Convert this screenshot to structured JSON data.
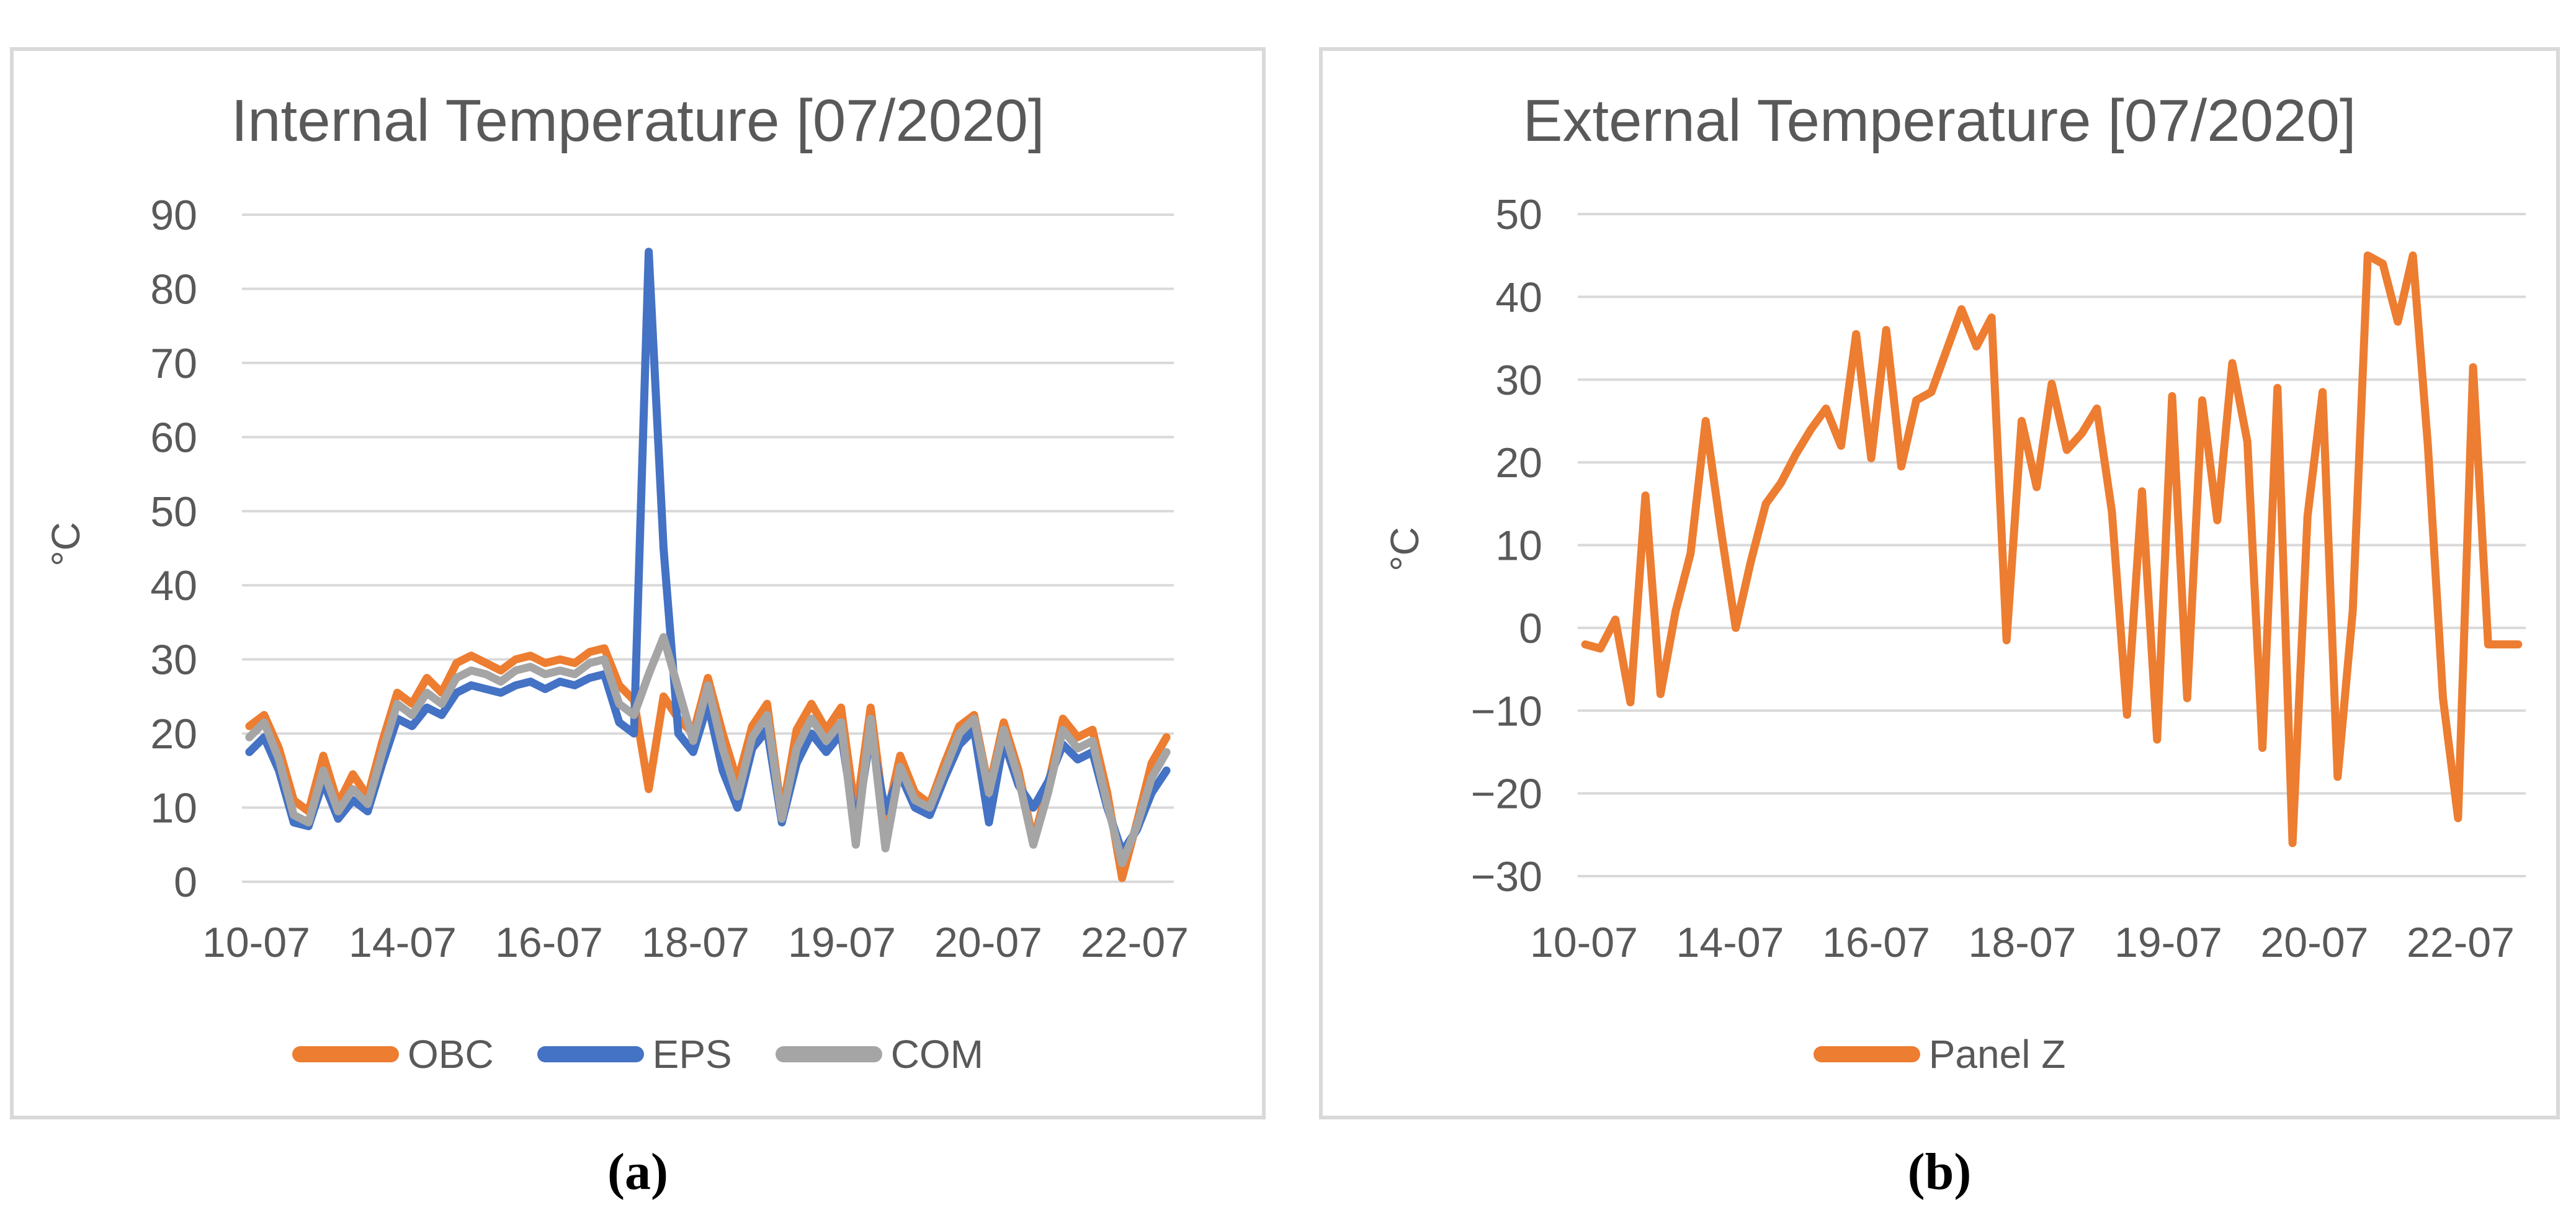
{
  "figure": {
    "captions": [
      "(a)",
      "(b)"
    ]
  },
  "colors": {
    "obc_orange": "#ED7D31",
    "eps_blue": "#4472C4",
    "com_gray": "#A5A5A5",
    "gridline": "#D9D9D9",
    "panel_border": "#D9D9D9",
    "chart_text": "#595959"
  },
  "chart_data": [
    {
      "type": "line",
      "title": "Internal Temperature [07/2020]",
      "xlabel": "",
      "ylabel": "°C",
      "ylim": [
        0,
        90
      ],
      "ytick_values": [
        0,
        10,
        20,
        30,
        40,
        50,
        60,
        70,
        80,
        90
      ],
      "ytick_labels": [
        "0",
        "10",
        "20",
        "30",
        "40",
        "50",
        "60",
        "70",
        "80",
        "90"
      ],
      "xtick_labels": [
        "10-07",
        "14-07",
        "16-07",
        "18-07",
        "19-07",
        "20-07",
        "22-07"
      ],
      "grid": true,
      "legend_position": "bottom",
      "series": [
        {
          "name": "OBC",
          "color": "#ED7D31",
          "values": [
            21,
            22.5,
            18,
            11,
            9.5,
            17,
            10.5,
            14.5,
            11.5,
            19,
            25.5,
            24,
            27.5,
            25.5,
            29.5,
            30.5,
            29.5,
            28.5,
            30,
            30.5,
            29.5,
            30,
            29.5,
            31,
            31.5,
            26.5,
            24.5,
            12.5,
            25,
            22,
            20,
            27.5,
            20,
            13.5,
            21,
            24,
            9,
            20.5,
            24,
            20.5,
            23.5,
            9,
            23.5,
            8,
            17,
            12,
            10.5,
            16,
            21,
            22.5,
            12.5,
            21.5,
            15,
            5.5,
            13,
            22,
            19.5,
            20.5,
            12,
            0.5,
            8,
            16,
            19.5
          ]
        },
        {
          "name": "EPS",
          "color": "#4472C4",
          "values": [
            17.5,
            19.5,
            15,
            8,
            7.5,
            13.5,
            8.5,
            11,
            9.5,
            16,
            22,
            21,
            23.5,
            22.5,
            25.5,
            26.5,
            26,
            25.5,
            26.5,
            27,
            26,
            27,
            26.5,
            27.5,
            28,
            21.5,
            20,
            85,
            45,
            20,
            17.5,
            24,
            15,
            10,
            18,
            20.5,
            8,
            16,
            20,
            17.5,
            20,
            7,
            20,
            9.5,
            14.5,
            10,
            9,
            14,
            18.5,
            20.5,
            8,
            19,
            13,
            10,
            13.5,
            18.5,
            16.5,
            17.5,
            10,
            4,
            7,
            12,
            15
          ]
        },
        {
          "name": "COM",
          "color": "#A5A5A5",
          "values": [
            19.5,
            21.5,
            16.5,
            9,
            8,
            15,
            9.5,
            12.5,
            10.5,
            17.5,
            24,
            22.5,
            25.5,
            24,
            27.5,
            28.5,
            28,
            27,
            28.5,
            29,
            28,
            28.5,
            28,
            29.5,
            30,
            24,
            22.5,
            28,
            33,
            26,
            19,
            26.5,
            18,
            11.5,
            19.5,
            22.5,
            8.5,
            18,
            22,
            19,
            21.5,
            5,
            22,
            4.5,
            15.5,
            11,
            10,
            15,
            20,
            22,
            12,
            20.5,
            14,
            5,
            12,
            20.5,
            18,
            19,
            10.5,
            2.5,
            7.5,
            14,
            17.5
          ]
        }
      ]
    },
    {
      "type": "line",
      "title": "External Temperature [07/2020]",
      "xlabel": "",
      "ylabel": "°C",
      "ylim": [
        -30,
        50
      ],
      "ytick_values": [
        -30,
        -20,
        -10,
        0,
        10,
        20,
        30,
        40,
        50
      ],
      "ytick_labels": [
        "−30",
        "−20",
        "−10",
        "0",
        "10",
        "20",
        "30",
        "40",
        "50"
      ],
      "xtick_labels": [
        "10-07",
        "14-07",
        "16-07",
        "18-07",
        "19-07",
        "20-07",
        "22-07"
      ],
      "grid": true,
      "legend_position": "bottom",
      "series": [
        {
          "name": "Panel Z",
          "color": "#ED7D31",
          "values": [
            -2,
            -2.5,
            1,
            -9,
            16,
            -8,
            2,
            9,
            25,
            12,
            0,
            8,
            15,
            17.5,
            21,
            24,
            26.5,
            22,
            35.5,
            20.5,
            36,
            19.5,
            27.5,
            28.5,
            33.5,
            38.5,
            34,
            37.5,
            -1.5,
            25,
            17,
            29.5,
            21.5,
            23.5,
            26.5,
            14,
            -10.5,
            16.5,
            -13.5,
            28,
            -8.5,
            27.5,
            13,
            32,
            22.5,
            -14.5,
            29,
            -26,
            13.5,
            28.5,
            -18,
            2,
            45,
            44,
            37,
            45,
            22,
            -8.5,
            -23,
            31.5,
            -2,
            -2,
            -2
          ]
        }
      ]
    }
  ]
}
